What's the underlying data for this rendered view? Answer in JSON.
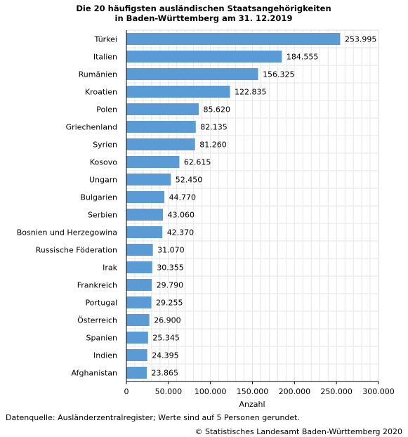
{
  "chart_data": {
    "type": "bar",
    "orientation": "horizontal",
    "title_line1": "Die 20 häufigsten ausländischen Staatsangehörigkeiten",
    "title_line2": "in Baden-Württemberg am 31. 12.2019",
    "categories": [
      "Türkei",
      "Italien",
      "Rumänien",
      "Kroatien",
      "Polen",
      "Griechenland",
      "Syrien",
      "Kosovo",
      "Ungarn",
      "Bulgarien",
      "Serbien",
      "Bosnien und Herzegowina",
      "Russische Föderation",
      "Irak",
      "Frankreich",
      "Portugal",
      "Österreich",
      "Spanien",
      "Indien",
      "Afghanistan"
    ],
    "values": [
      253995,
      184555,
      156325,
      122835,
      85620,
      82135,
      81260,
      62615,
      52450,
      44770,
      43060,
      42370,
      31070,
      30355,
      29790,
      29255,
      26900,
      25345,
      24395,
      23865
    ],
    "value_labels": [
      "253.995",
      "184.555",
      "156.325",
      "122.835",
      "85.620",
      "82.135",
      "81.260",
      "62.615",
      "52.450",
      "44.770",
      "43.060",
      "42.370",
      "31.070",
      "30.355",
      "29.790",
      "29.255",
      "26.900",
      "25.345",
      "24.395",
      "23.865"
    ],
    "xlabel": "Anzahl",
    "xlim": [
      0,
      300000
    ],
    "x_ticks": [
      0,
      50000,
      100000,
      150000,
      200000,
      250000,
      300000
    ],
    "x_tick_labels": [
      "0",
      "50.000",
      "100.000",
      "150.000",
      "200.000",
      "250.000",
      "300.000"
    ],
    "grid": true,
    "bar_color": "#5b9bd5"
  },
  "footer": {
    "source": "Datenquelle: Ausländerzentralregister; Werte sind auf 5 Personen gerundet.",
    "copyright": "© Statistisches Landesamt Baden-Württemberg 2020"
  }
}
